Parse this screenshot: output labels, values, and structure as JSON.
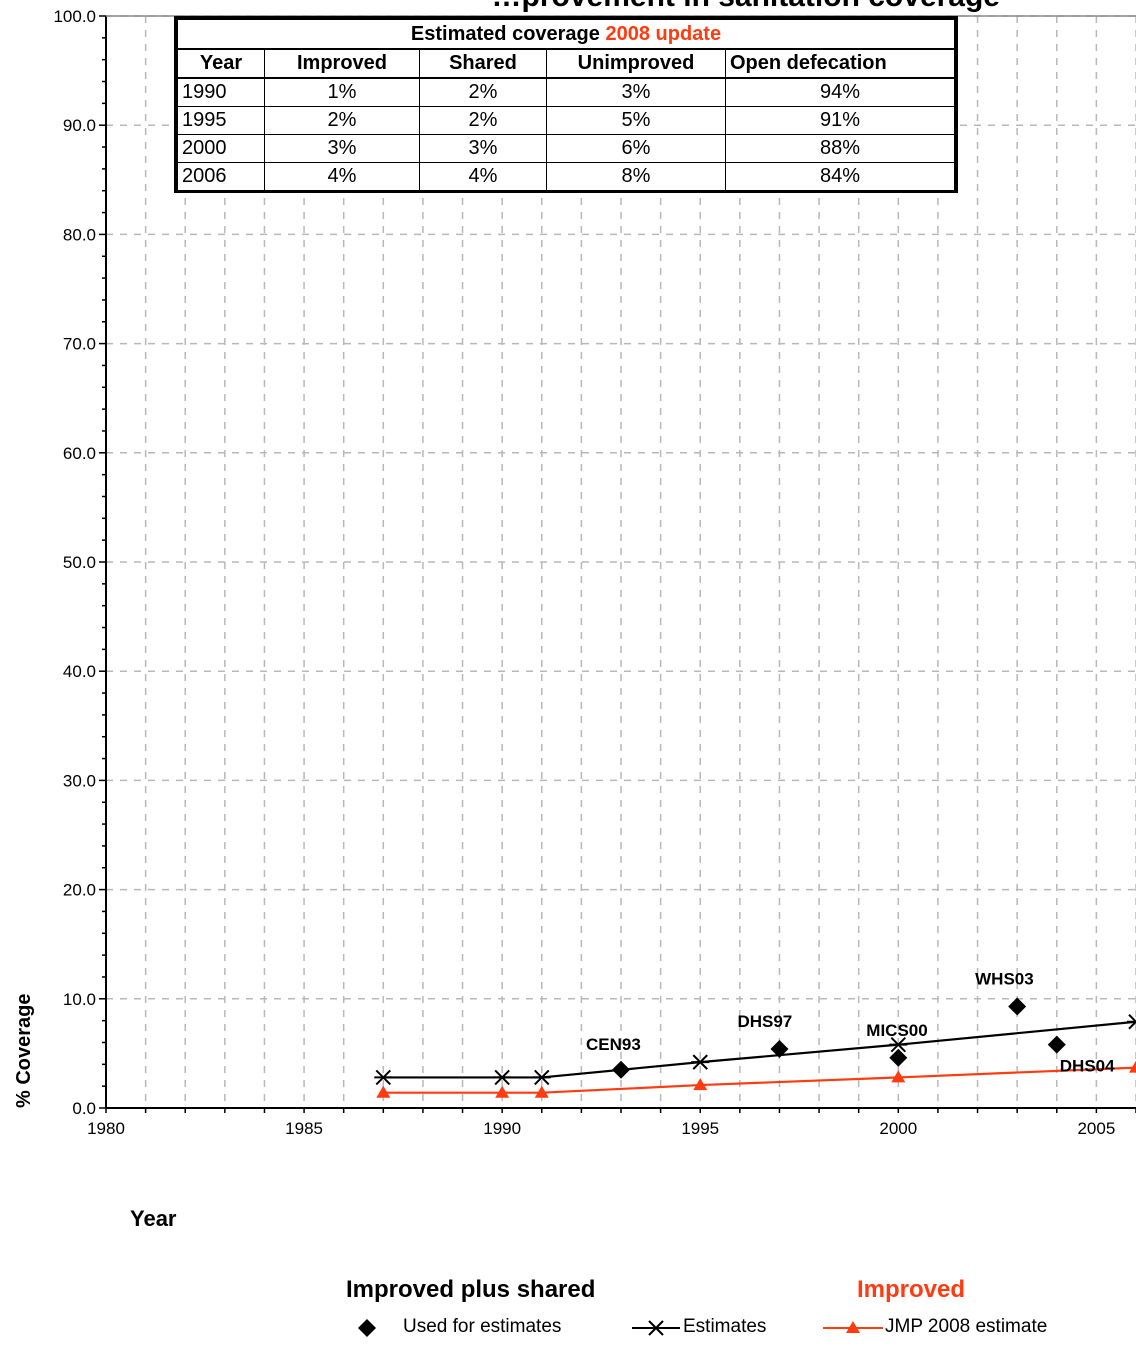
{
  "chart_data": {
    "type": "line",
    "title": "…provement in sanitation coverage",
    "xlabel": "Year",
    "ylabel": "% Coverage",
    "xlim": [
      1980,
      2006
    ],
    "ylim": [
      0,
      100
    ],
    "x_ticks": [
      "1980",
      "1985",
      "1990",
      "1995",
      "2000",
      "2005"
    ],
    "y_ticks": [
      "0.0",
      "10.0",
      "20.0",
      "30.0",
      "40.0",
      "50.0",
      "60.0",
      "70.0",
      "80.0",
      "90.0",
      "100.0"
    ],
    "grid": true,
    "series": [
      {
        "name": "Used for estimates",
        "style": "diamond-markers",
        "color": "#000000",
        "points": [
          {
            "x": 1993,
            "y": 3.5,
            "label": "CEN93"
          },
          {
            "x": 1997,
            "y": 5.4,
            "label": "DHS97"
          },
          {
            "x": 2000,
            "y": 4.6,
            "label": "MICS00"
          },
          {
            "x": 2003,
            "y": 9.3,
            "label": "WHS03"
          },
          {
            "x": 2004,
            "y": 5.8,
            "label": "DHS04"
          }
        ]
      },
      {
        "name": "Estimates",
        "style": "line-star",
        "color": "#000000",
        "points": [
          {
            "x": 1987,
            "y": 2.8
          },
          {
            "x": 1990,
            "y": 2.8
          },
          {
            "x": 1991,
            "y": 2.8
          },
          {
            "x": 1995,
            "y": 4.2
          },
          {
            "x": 2000,
            "y": 5.8
          },
          {
            "x": 2006,
            "y": 7.9
          }
        ]
      },
      {
        "name": "JMP 2008 estimate",
        "style": "line-triangle",
        "color": "#ff3b0f",
        "points": [
          {
            "x": 1987,
            "y": 1.4
          },
          {
            "x": 1990,
            "y": 1.4
          },
          {
            "x": 1991,
            "y": 1.4
          },
          {
            "x": 1995,
            "y": 2.1
          },
          {
            "x": 2000,
            "y": 2.8
          },
          {
            "x": 2006,
            "y": 3.7
          }
        ]
      }
    ],
    "subtitles": {
      "left": "Improved plus shared",
      "right": "Improved",
      "right_color": "#ff3b0f"
    },
    "legend": {
      "placement": "bottom",
      "items": [
        "Used for estimates",
        "Estimates",
        "JMP 2008 estimate"
      ]
    },
    "table": {
      "caption_prefix": "Estimated coverage",
      "caption_accent": "2008 update",
      "accent_color": "#ff3b0f",
      "columns": [
        "Year",
        "Improved",
        "Shared",
        "Unimproved",
        "Open defecation"
      ],
      "rows": [
        [
          "1990",
          "1%",
          "2%",
          "3%",
          "94%"
        ],
        [
          "1995",
          "2%",
          "2%",
          "5%",
          "91%"
        ],
        [
          "2000",
          "3%",
          "3%",
          "6%",
          "88%"
        ],
        [
          "2006",
          "4%",
          "4%",
          "8%",
          "84%"
        ]
      ]
    }
  }
}
